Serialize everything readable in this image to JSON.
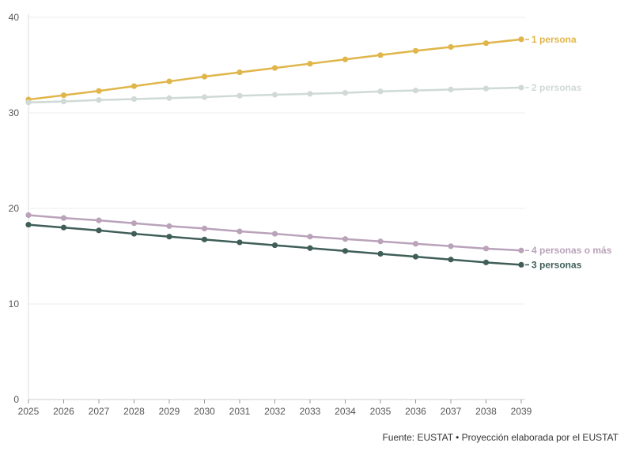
{
  "chart_data": {
    "type": "line",
    "x": [
      "2025",
      "2026",
      "2027",
      "2028",
      "2029",
      "2030",
      "2031",
      "2032",
      "2033",
      "2034",
      "2035",
      "2036",
      "2037",
      "2038",
      "2039"
    ],
    "ylim": [
      0,
      40
    ],
    "yticks": [
      0,
      10,
      20,
      30,
      40
    ],
    "grid": true,
    "series": [
      {
        "name": "1 persona",
        "color": "#E0B54A",
        "values": [
          31.4,
          31.85,
          32.3,
          32.8,
          33.3,
          33.8,
          34.25,
          34.7,
          35.15,
          35.6,
          36.05,
          36.5,
          36.9,
          37.3,
          37.7
        ]
      },
      {
        "name": "2 personas",
        "color": "#CFDAD6",
        "values": [
          31.1,
          31.2,
          31.35,
          31.45,
          31.55,
          31.65,
          31.8,
          31.9,
          32.0,
          32.1,
          32.25,
          32.35,
          32.45,
          32.55,
          32.65
        ]
      },
      {
        "name": "4 personas o más",
        "color": "#B9A2BA",
        "values": [
          19.3,
          19.0,
          18.75,
          18.45,
          18.15,
          17.9,
          17.6,
          17.35,
          17.05,
          16.8,
          16.55,
          16.3,
          16.05,
          15.8,
          15.6
        ]
      },
      {
        "name": "3 personas",
        "color": "#3F5E57",
        "values": [
          18.3,
          18.0,
          17.7,
          17.35,
          17.05,
          16.75,
          16.45,
          16.15,
          15.85,
          15.55,
          15.25,
          14.95,
          14.65,
          14.35,
          14.1
        ]
      }
    ]
  },
  "source": "Fuente: EUSTAT • Proyección elaborada por el EUSTAT"
}
